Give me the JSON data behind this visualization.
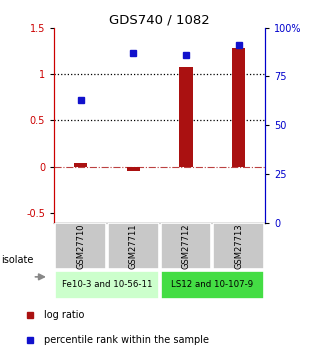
{
  "title": "GDS740 / 1082",
  "samples": [
    "GSM27710",
    "GSM27711",
    "GSM27712",
    "GSM27713"
  ],
  "log_ratios": [
    0.04,
    -0.04,
    1.08,
    1.28
  ],
  "percentile_raw": [
    63,
    87,
    86,
    91
  ],
  "bar_color": "#aa1111",
  "dot_color": "#1111cc",
  "ylim_left": [
    -0.6,
    1.5
  ],
  "ylim_right": [
    0,
    100
  ],
  "yticks_left": [
    -0.5,
    0.0,
    0.5,
    1.0,
    1.5
  ],
  "ytick_labels_left": [
    "-0.5",
    "0",
    "0.5",
    "1",
    "1.5"
  ],
  "yticks_right": [
    0,
    25,
    50,
    75,
    100
  ],
  "ytick_labels_right": [
    "0",
    "25",
    "50",
    "75",
    "100%"
  ],
  "hlines": [
    0.5,
    1.0
  ],
  "groups": [
    {
      "label": "Fe10-3 and 10-56-11",
      "samples": [
        0,
        1
      ]
    },
    {
      "label": "LS12 and 10-107-9",
      "samples": [
        2,
        3
      ]
    }
  ],
  "isolate_label": "isolate",
  "legend_items": [
    {
      "label": "log ratio",
      "color": "#aa1111"
    },
    {
      "label": "percentile rank within the sample",
      "color": "#1111cc"
    }
  ],
  "group1_color": "#ccffcc",
  "group2_color": "#44dd44",
  "sample_box_color": "#c8c8c8",
  "left_axis_color": "#cc0000",
  "right_axis_color": "#0000cc"
}
